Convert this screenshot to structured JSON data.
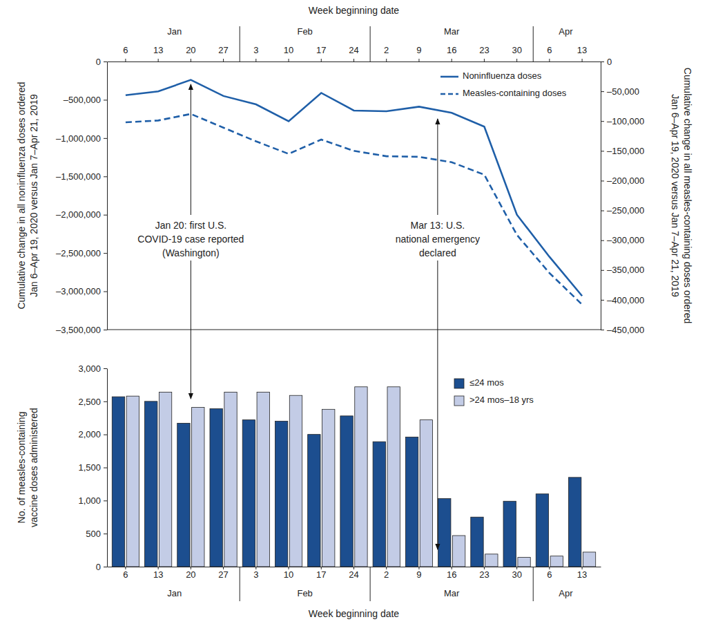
{
  "chart_data": [
    {
      "type": "line",
      "categories": [
        "6",
        "13",
        "20",
        "27",
        "3",
        "10",
        "17",
        "24",
        "2",
        "9",
        "16",
        "23",
        "30",
        "6",
        "13"
      ],
      "months": [
        "Jan",
        "Jan",
        "Jan",
        "Jan",
        "Feb",
        "Feb",
        "Feb",
        "Feb",
        "Mar",
        "Mar",
        "Mar",
        "Mar",
        "Mar",
        "Apr",
        "Apr"
      ],
      "x_label": "Week beginning date",
      "y_label": [
        "Cumulative change in all noninfluenza doses ordered",
        "Jan 6–Apr 19, 2020 versus Jan 7–Apr 21, 2019"
      ],
      "y2_label": [
        "Cumulative change in all measles-containing doses ordered",
        "Jan 6–Apr 19, 2020 versus Jan 7–Apr 21, 2019"
      ],
      "ylim": [
        -3500000,
        0
      ],
      "yticks": [
        0,
        {
          "value": -500000,
          "label": "–500,000"
        },
        {
          "value": -1000000,
          "label": "–1,000,000"
        },
        {
          "value": -1500000,
          "label": "–1,500,000"
        },
        {
          "value": -2000000,
          "label": "–2,000,000"
        },
        {
          "value": -2500000,
          "label": "–2,500,000"
        },
        {
          "value": -3000000,
          "label": "–3,000,000"
        },
        {
          "value": -3500000,
          "label": "–3,500,000"
        }
      ],
      "y2lim": [
        -450000,
        0
      ],
      "y2ticks": [
        0,
        {
          "value": -50000,
          "label": "–50,000"
        },
        {
          "value": -100000,
          "label": "–100,000"
        },
        {
          "value": -150000,
          "label": "–150,000"
        },
        {
          "value": -200000,
          "label": "–200,000"
        },
        {
          "value": -250000,
          "label": "–250,000"
        },
        {
          "value": -300000,
          "label": "–300,000"
        },
        {
          "value": -350000,
          "label": "–350,000"
        },
        {
          "value": -400000,
          "label": "–400,000"
        },
        {
          "value": -450000,
          "label": "–450,000"
        }
      ],
      "legend": "upper right",
      "series": [
        {
          "name": "Noninfluenza doses",
          "color": "#1f5fa8",
          "line_style": "solid",
          "values": [
            -440000,
            -390000,
            -240000,
            -450000,
            -560000,
            -780000,
            -410000,
            -640000,
            -650000,
            -590000,
            -670000,
            -850000,
            -2000000,
            -2550000,
            -3060000
          ]
        },
        {
          "name": "Measles-containing doses",
          "color": "#1f5fa8",
          "line_style": "dashed",
          "axis": "y2",
          "values": [
            -102000,
            -99000,
            -88000,
            -111000,
            -134000,
            -155000,
            -131000,
            -150000,
            -159000,
            -160000,
            -169000,
            -190000,
            -291000,
            -355000,
            -408000
          ]
        }
      ],
      "annotations": [
        {
          "x": 2,
          "lines": [
            "Jan 20: first U.S.",
            "COVID-19 case reported",
            "(Washington)"
          ]
        },
        {
          "x": 9.57,
          "lines": [
            "Mar 13: U.S.",
            "national emergency",
            "declared"
          ]
        }
      ]
    },
    {
      "type": "bar",
      "categories": [
        "6",
        "13",
        "20",
        "27",
        "3",
        "10",
        "17",
        "24",
        "2",
        "9",
        "16",
        "23",
        "30",
        "6",
        "13"
      ],
      "months": [
        "Jan",
        "Jan",
        "Jan",
        "Jan",
        "Feb",
        "Feb",
        "Feb",
        "Feb",
        "Mar",
        "Mar",
        "Mar",
        "Mar",
        "Mar",
        "Apr",
        "Apr"
      ],
      "x_label": "Week beginning date",
      "y_label": [
        "No. of measles-containing",
        "vaccine doses administered"
      ],
      "ylim": [
        0,
        3000
      ],
      "yticks": [
        0,
        500,
        {
          "value": 1000,
          "label": "1,000"
        },
        {
          "value": 1500,
          "label": "1,500"
        },
        {
          "value": 2000,
          "label": "2,000"
        },
        {
          "value": 2500,
          "label": "2,500"
        },
        {
          "value": 3000,
          "label": "3,000"
        }
      ],
      "legend": "upper right",
      "series": [
        {
          "name": "≤24 mos",
          "color": "#1c4e8f",
          "values": [
            2570,
            2500,
            2170,
            2390,
            2220,
            2200,
            2000,
            2280,
            1890,
            1960,
            1030,
            750,
            990,
            1100,
            1350
          ]
        },
        {
          "name": ">24 mos–18 yrs",
          "color": "#c3cce6",
          "values": [
            2580,
            2640,
            2410,
            2640,
            2640,
            2590,
            2380,
            2720,
            2720,
            2220,
            470,
            190,
            140,
            160,
            220
          ]
        }
      ]
    }
  ]
}
